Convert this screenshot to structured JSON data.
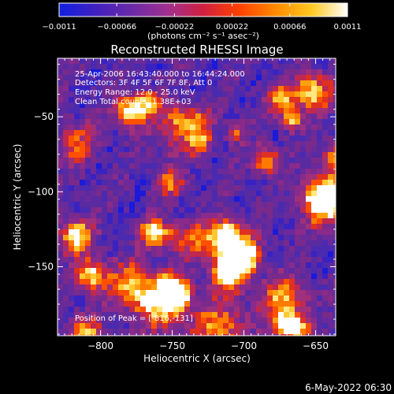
{
  "chart_data": {
    "type": "heatmap",
    "title": "Reconstructed RHESSI Image",
    "xlabel": "Heliocentric X (arcsec)",
    "ylabel": "Heliocentric Y (arcsec)",
    "xlim": [
      -830,
      -636
    ],
    "ylim": [
      -196,
      -11
    ],
    "x_ticks": [
      -800,
      -750,
      -700,
      -650
    ],
    "y_ticks": [
      -50,
      -100,
      -150
    ],
    "x_tick_labels": [
      "−800",
      "−750",
      "−700",
      "−650"
    ],
    "y_tick_labels": [
      "−50",
      "−100",
      "−150"
    ],
    "colorbar": {
      "range": [
        -0.0011,
        0.0011
      ],
      "tick_labels": [
        "−0.0011",
        "−0.00066",
        "−0.00022",
        "0.00022",
        "0.00066",
        "0.0011"
      ],
      "units_label": "(photons cm⁻² s⁻¹ asec⁻²)",
      "colors": [
        "#1020e0",
        "#4020c0",
        "#6a2aa8",
        "#a03090",
        "#d02040",
        "#ff4000",
        "#ff8a00",
        "#ffc820",
        "#ffffff"
      ]
    },
    "annotations": [
      "25-Apr-2006 16:43:40.000 to 16:44:24.000",
      "Detectors: 3F 4F 5F 6F 7F 8F, Att 0",
      "Energy Range: 12.0 - 25.0 keV",
      "Clean     Total counts: 1.38E+03"
    ],
    "peak_label": "Position of Peak = [-816,-131]",
    "peak": {
      "x": -816,
      "y": -131
    }
  },
  "footer": {
    "timestamp": "6-May-2022 06:30"
  }
}
